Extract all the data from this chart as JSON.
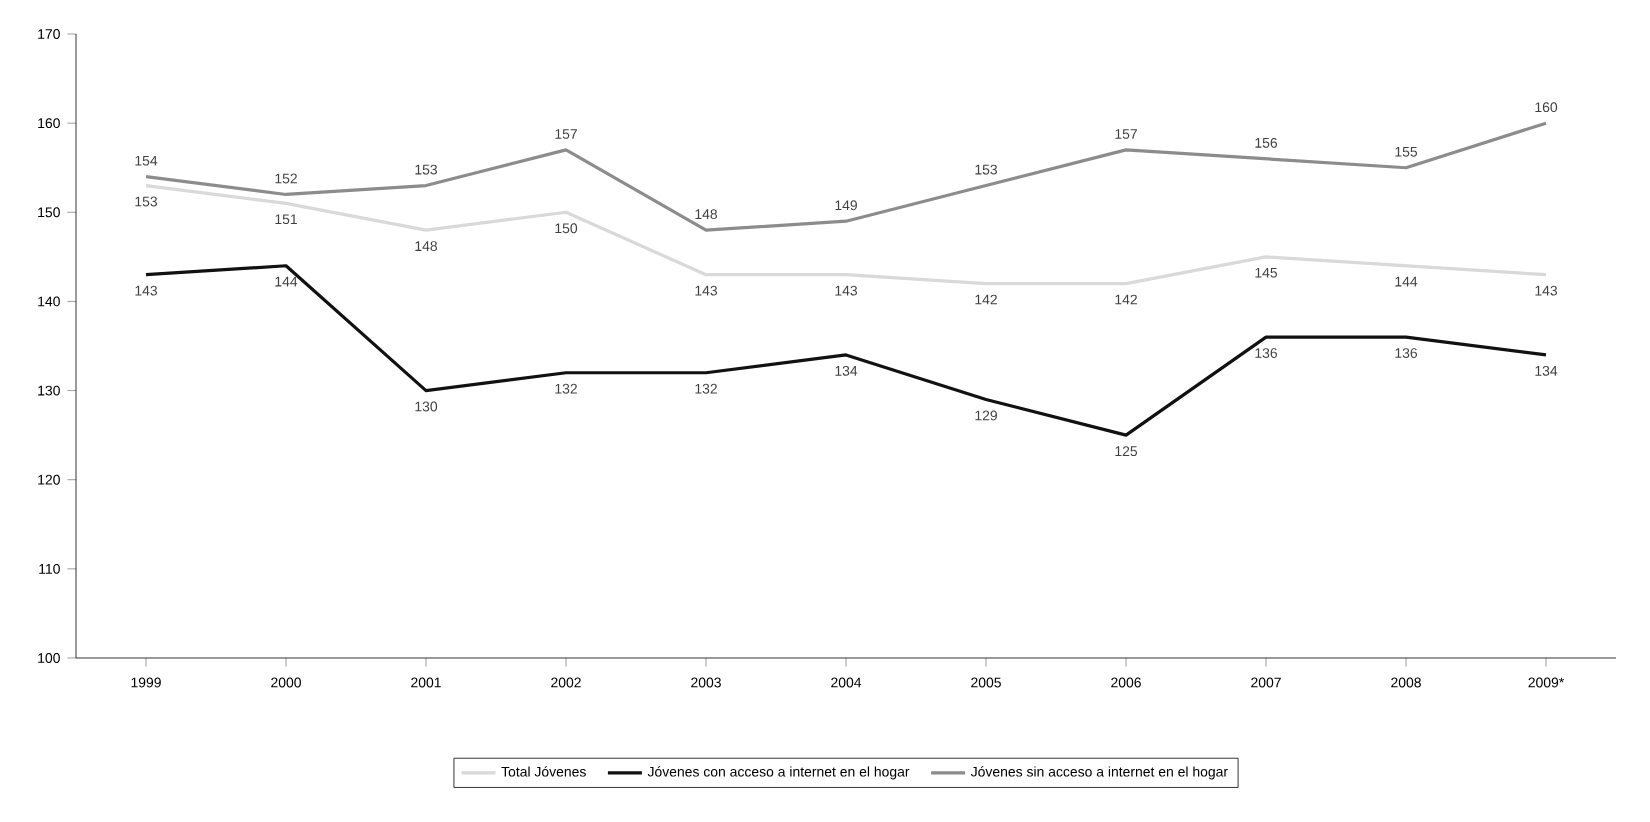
{
  "chart_data": {
    "type": "line",
    "categories": [
      "1999",
      "2000",
      "2001",
      "2002",
      "2003",
      "2004",
      "2005",
      "2006",
      "2007",
      "2008",
      "2009*"
    ],
    "series": [
      {
        "name": "Total Jóvenes",
        "color": "#d9d9d9",
        "values": [
          153,
          151,
          148,
          150,
          143,
          143,
          142,
          142,
          145,
          144,
          143
        ]
      },
      {
        "name": "Jóvenes con acceso a internet en el hogar",
        "color": "#111111",
        "values": [
          143,
          144,
          130,
          132,
          132,
          134,
          129,
          125,
          136,
          136,
          134
        ]
      },
      {
        "name": "Jóvenes sin acceso a internet en el hogar",
        "color": "#8c8c8c",
        "values": [
          154,
          152,
          153,
          157,
          148,
          149,
          153,
          157,
          156,
          155,
          160
        ]
      }
    ],
    "ylim": [
      100,
      170
    ],
    "yticks": [
      100,
      110,
      120,
      130,
      140,
      150,
      160,
      170
    ],
    "grid": false,
    "legend": "bottom",
    "data_labels": true,
    "marker": "none",
    "line_style": "solid"
  }
}
